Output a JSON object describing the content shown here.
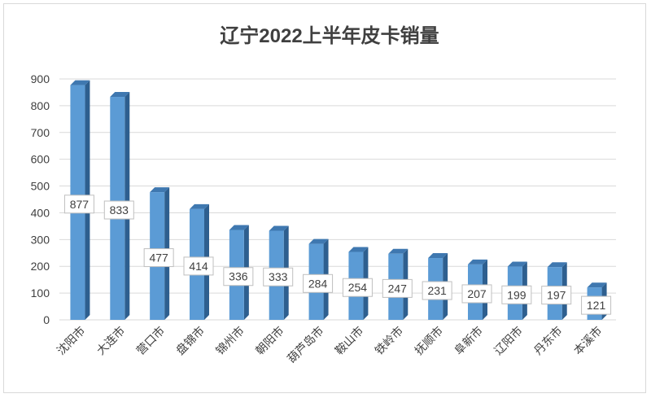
{
  "chart_data": {
    "type": "bar",
    "title": "辽宁2022上半年皮卡销量",
    "categories": [
      "沈阳市",
      "大连市",
      "营口市",
      "盘锦市",
      "锦州市",
      "朝阳市",
      "葫芦岛市",
      "鞍山市",
      "铁岭市",
      "抚顺市",
      "阜新市",
      "辽阳市",
      "丹东市",
      "本溪市"
    ],
    "values": [
      877,
      833,
      477,
      414,
      336,
      333,
      284,
      254,
      247,
      231,
      207,
      199,
      197,
      121
    ],
    "ylim": [
      0,
      900
    ],
    "yticks": [
      0,
      100,
      200,
      300,
      400,
      500,
      600,
      700,
      800,
      900
    ],
    "grid": true,
    "legend": false,
    "colors": {
      "bar_front": "#5b9bd5",
      "bar_side": "#2e5f8f",
      "bar_top": "#3f78b0",
      "grid": "#d9d9d9",
      "axis_text": "#404040"
    }
  }
}
